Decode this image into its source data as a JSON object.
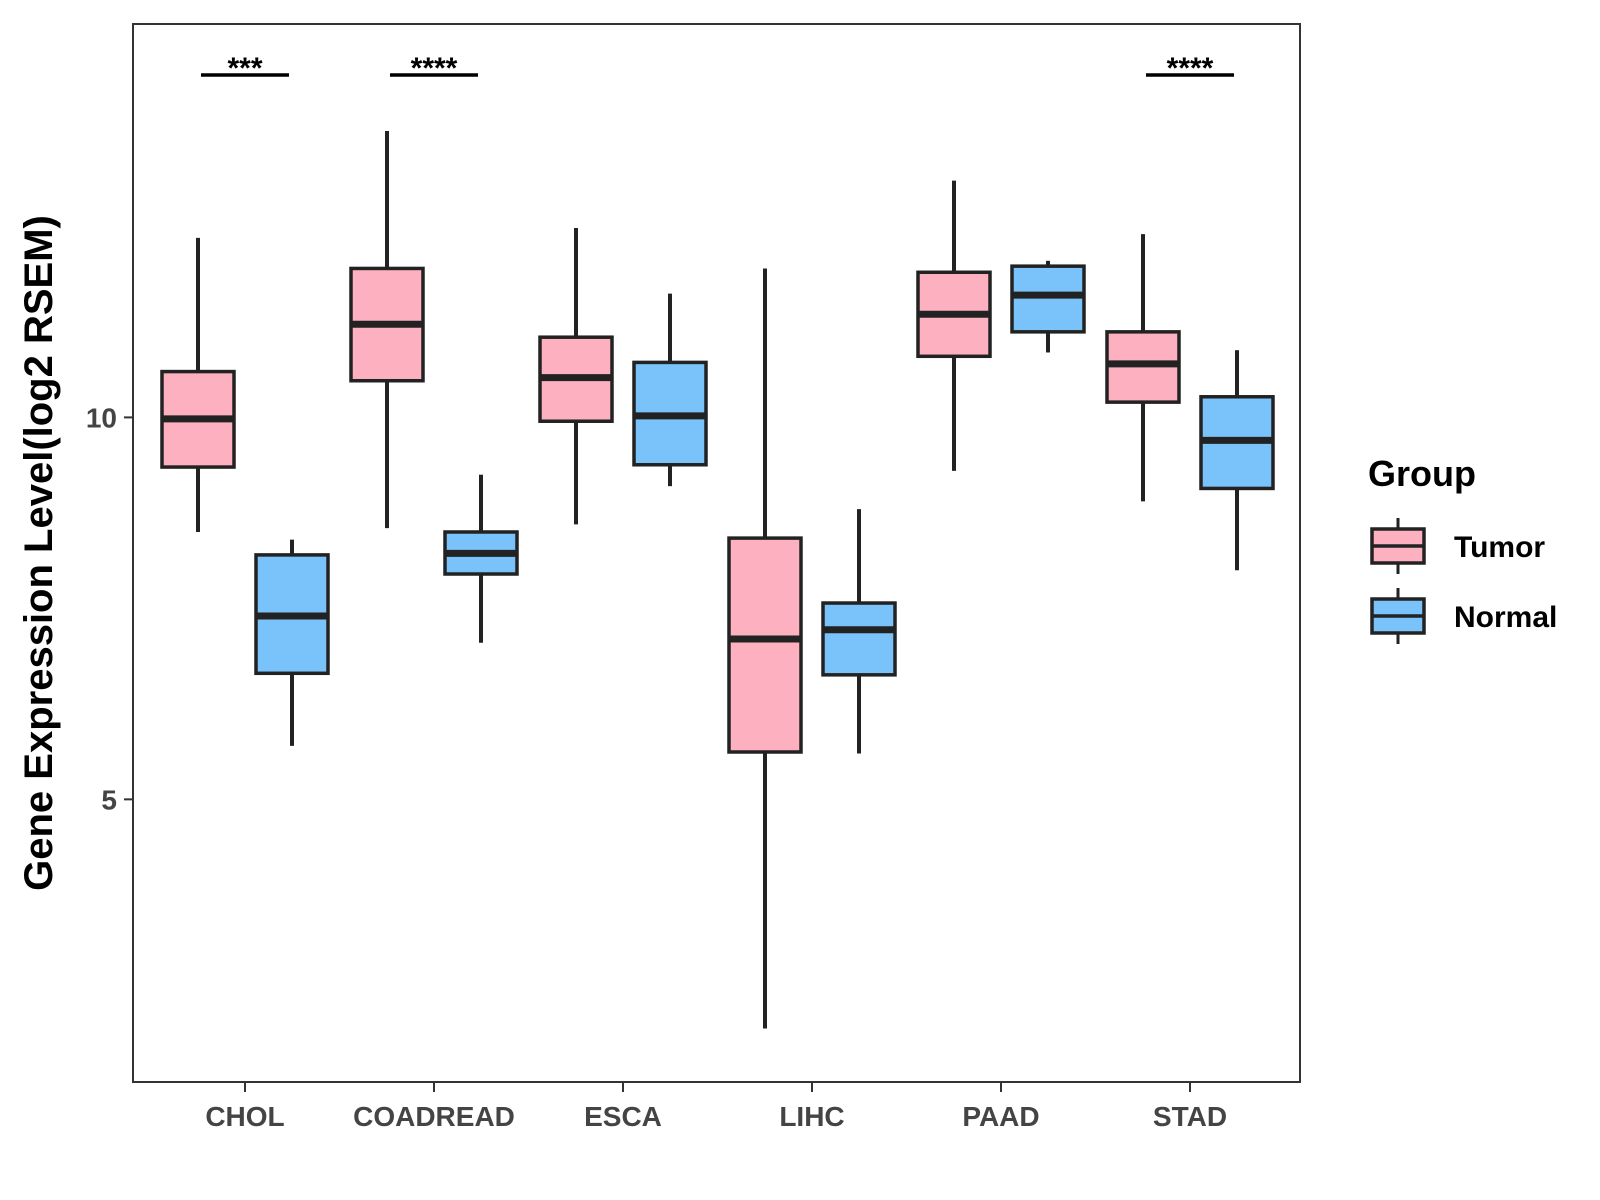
{
  "chart_data": {
    "type": "box",
    "title": "",
    "xlabel": "",
    "ylabel": "Gene Expression Level(log2 RSEM)",
    "ylim": [
      1.3,
      15.15
    ],
    "yticks": [
      5,
      10
    ],
    "ytick_labels": [
      "5",
      "10"
    ],
    "grid": false,
    "categories": [
      "CHOL",
      "COADREAD",
      "ESCA",
      "LIHC",
      "PAAD",
      "STAD"
    ],
    "legend": {
      "title": "Group",
      "position": "right",
      "entries": [
        {
          "name": "Tumor",
          "color": "#FDB0C0"
        },
        {
          "name": "Normal",
          "color": "#7AC3FA"
        }
      ]
    },
    "series": [
      {
        "name": "Tumor",
        "color": "#FDB0C0",
        "boxes": [
          {
            "min": 8.5,
            "q1": 9.35,
            "median": 9.98,
            "q3": 10.6,
            "max": 12.35
          },
          {
            "min": 8.55,
            "q1": 10.48,
            "median": 11.22,
            "q3": 11.95,
            "max": 13.75
          },
          {
            "min": 8.6,
            "q1": 9.95,
            "median": 10.52,
            "q3": 11.05,
            "max": 12.48
          },
          {
            "min": 2.0,
            "q1": 5.62,
            "median": 7.1,
            "q3": 8.42,
            "max": 11.95
          },
          {
            "min": 9.3,
            "q1": 10.8,
            "median": 11.35,
            "q3": 11.9,
            "max": 13.1
          },
          {
            "min": 8.9,
            "q1": 10.2,
            "median": 10.7,
            "q3": 11.12,
            "max": 12.4
          }
        ]
      },
      {
        "name": "Normal",
        "color": "#7AC3FA",
        "boxes": [
          {
            "min": 5.7,
            "q1": 6.65,
            "median": 7.4,
            "q3": 8.2,
            "max": 8.4
          },
          {
            "min": 7.05,
            "q1": 7.95,
            "median": 8.22,
            "q3": 8.5,
            "max": 9.25
          },
          {
            "min": 9.1,
            "q1": 9.38,
            "median": 10.02,
            "q3": 10.72,
            "max": 11.62
          },
          {
            "min": 5.6,
            "q1": 6.63,
            "median": 7.22,
            "q3": 7.57,
            "max": 8.8
          },
          {
            "min": 10.85,
            "q1": 11.12,
            "median": 11.6,
            "q3": 11.98,
            "max": 12.05
          },
          {
            "min": 8.0,
            "q1": 9.07,
            "median": 9.7,
            "q3": 10.27,
            "max": 10.88
          }
        ]
      }
    ],
    "annotations": [
      {
        "category": "CHOL",
        "text": "***"
      },
      {
        "category": "COADREAD",
        "text": "****"
      },
      {
        "category": "STAD",
        "text": "****"
      }
    ]
  }
}
